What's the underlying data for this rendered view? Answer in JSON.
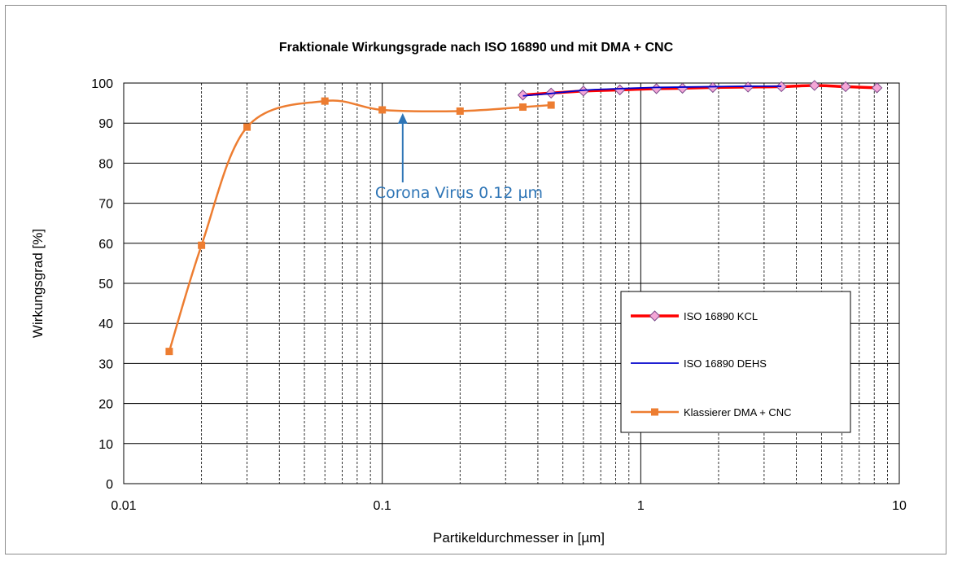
{
  "chart_data": {
    "type": "line",
    "title": "Fraktionale Wirkungsgrade nach ISO 16890 und mit DMA + CNC",
    "xlabel": "Partikeldurchmesser in [µm]",
    "ylabel": "Wirkungsgrad [%]",
    "x_scale": "log",
    "xlim": [
      0.01,
      10
    ],
    "ylim": [
      0,
      100
    ],
    "grid": true,
    "x_ticks": [
      "0.01",
      "0.1",
      "1",
      "10"
    ],
    "y_ticks": [
      "0",
      "10",
      "20",
      "30",
      "40",
      "50",
      "60",
      "70",
      "80",
      "90",
      "100"
    ],
    "legend_position": "right",
    "series": [
      {
        "name": "ISO 16890 KCL",
        "color": "#ff0000",
        "marker": "diamond",
        "marker_color": "#f4a6d6",
        "x": [
          0.35,
          0.45,
          0.6,
          0.83,
          1.15,
          1.45,
          1.9,
          2.6,
          3.5,
          4.7,
          6.2,
          8.2
        ],
        "y": [
          97,
          97.5,
          98,
          98.3,
          98.6,
          98.7,
          98.9,
          99.0,
          99.1,
          99.4,
          99.1,
          98.8
        ]
      },
      {
        "name": "ISO 16890 DEHS",
        "color": "#0000cc",
        "marker": "none",
        "x": [
          0.35,
          0.45,
          0.6,
          0.83,
          1.15,
          1.45,
          1.9,
          2.6,
          3.5
        ],
        "y": [
          96.8,
          97.4,
          98.2,
          98.6,
          98.9,
          99.0,
          99.1,
          99.2,
          99.2
        ]
      },
      {
        "name": "Klassierer DMA + CNC",
        "color": "#ed7d31",
        "marker": "square",
        "marker_color": "#ed7d31",
        "x": [
          0.015,
          0.02,
          0.03,
          0.06,
          0.1,
          0.2,
          0.35,
          0.45
        ],
        "y": [
          33,
          59.5,
          89,
          95.5,
          93.3,
          93,
          94,
          94.5
        ]
      }
    ],
    "annotations": [
      {
        "text": "Corona Virus 0.12 µm",
        "x": 0.12,
        "arrow_to_y": 93.3,
        "text_y": 75,
        "color": "#2e75b6"
      }
    ]
  }
}
